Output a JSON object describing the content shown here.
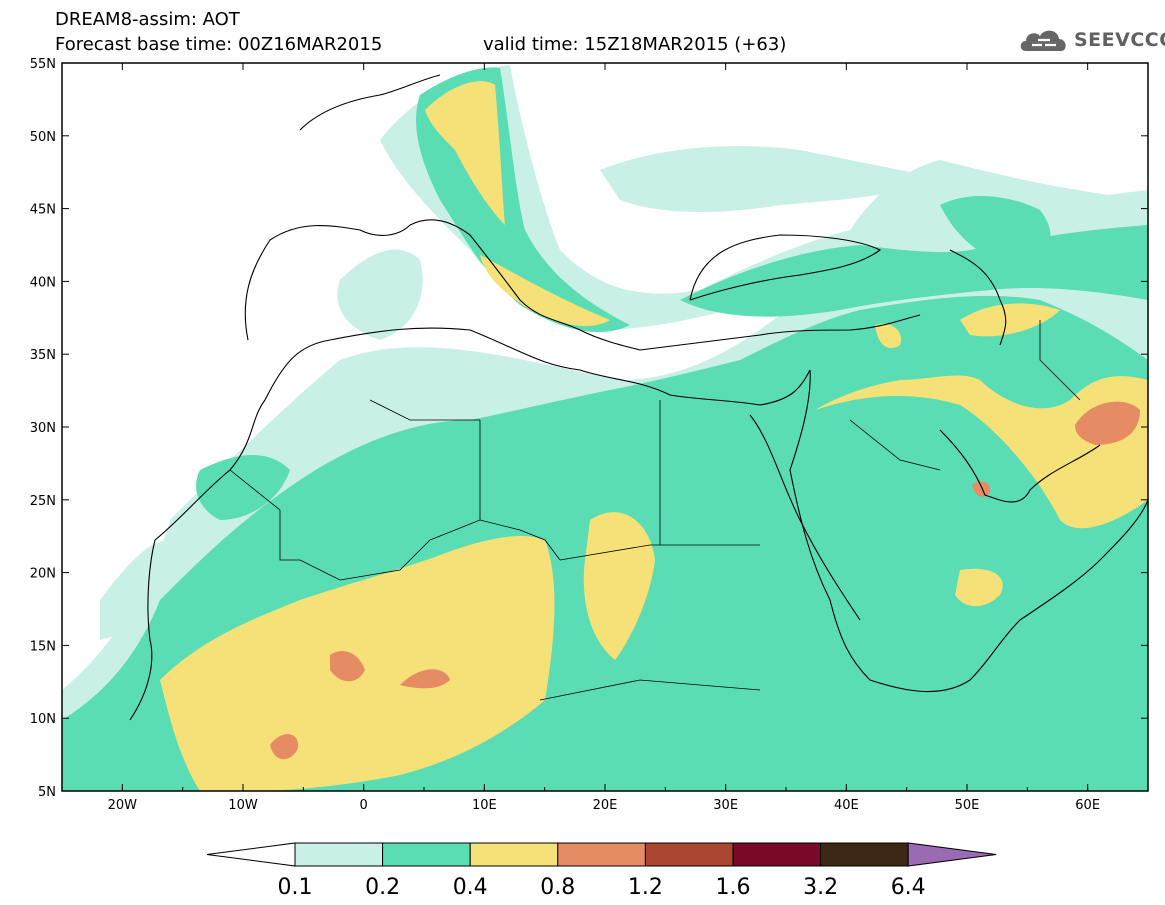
{
  "header": {
    "title": "DREAM8-assim: AOT",
    "base_time": "Forecast base time: 00Z16MAR2015",
    "valid_time": "valid time: 15Z18MAR2015 (+63)"
  },
  "logo": {
    "text": "SEEVCCC",
    "icon": "cloud-icon"
  },
  "map_data": {
    "type": "contour-map",
    "variable": "AOT",
    "lon_range": [
      -25,
      65
    ],
    "lat_range": [
      5,
      55
    ],
    "lon_ticks": [
      "20W",
      "10W",
      "0",
      "10E",
      "20E",
      "30E",
      "40E",
      "50E",
      "60E"
    ],
    "lat_ticks": [
      "55N",
      "50N",
      "45N",
      "40N",
      "35N",
      "30N",
      "25N",
      "20N",
      "15N",
      "10N",
      "5N"
    ]
  },
  "legend": {
    "levels": [
      "0.1",
      "0.2",
      "0.4",
      "0.8",
      "1.2",
      "1.6",
      "3.2",
      "6.4"
    ],
    "colors": [
      "#c8f0e6",
      "#5adcb4",
      "#f5e178",
      "#e68c64",
      "#aa4632",
      "#780a28",
      "#3c2814",
      "#9a6ab4"
    ]
  }
}
